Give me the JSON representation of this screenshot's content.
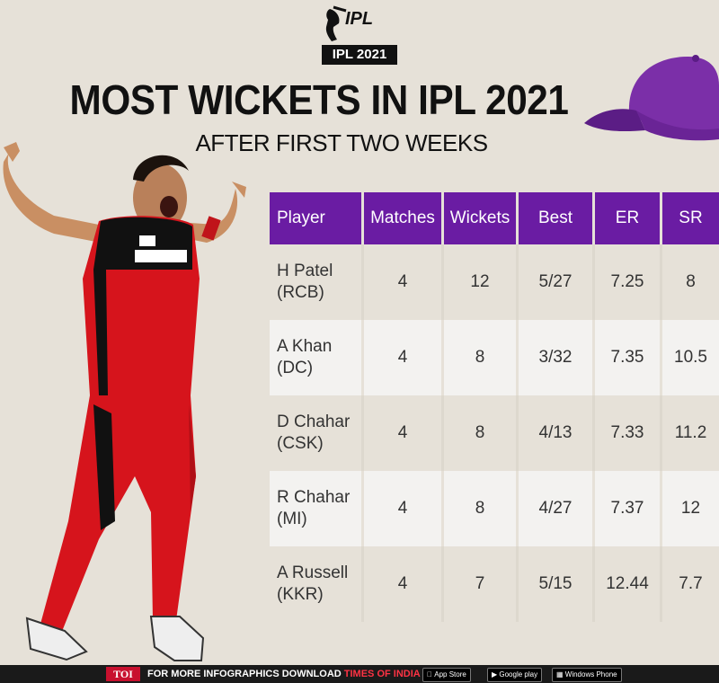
{
  "header": {
    "logo_text": "IPL",
    "badge": "IPL 2021",
    "title": "MOST WICKETS IN IPL 2021",
    "subtitle": "AFTER FIRST TWO WEEKS"
  },
  "colors": {
    "accent": "#6a1ca3",
    "background": "#e6e1d8",
    "cap": "#7b2fa8"
  },
  "chart_data": {
    "type": "table",
    "columns": [
      "Player",
      "Matches",
      "Wickets",
      "Best",
      "ER",
      "SR"
    ],
    "rows": [
      {
        "player": "H Patel",
        "team": "(RCB)",
        "matches": "4",
        "wickets": "12",
        "best": "5/27",
        "er": "7.25",
        "sr": "8"
      },
      {
        "player": "A Khan",
        "team": "(DC)",
        "matches": "4",
        "wickets": "8",
        "best": "3/32",
        "er": "7.35",
        "sr": "10.5"
      },
      {
        "player": "D Chahar",
        "team": "(CSK)",
        "matches": "4",
        "wickets": "8",
        "best": "4/13",
        "er": "7.33",
        "sr": "11.2"
      },
      {
        "player": "R Chahar",
        "team": "(MI)",
        "matches": "4",
        "wickets": "8",
        "best": "4/27",
        "er": "7.37",
        "sr": "12"
      },
      {
        "player": "A Russell",
        "team": "(KKR)",
        "matches": "4",
        "wickets": "7",
        "best": "5/15",
        "er": "12.44",
        "sr": "7.7"
      }
    ]
  },
  "footer": {
    "toi": "TOI",
    "text": "FOR MORE  INFOGRAPHICS DOWNLOAD",
    "app": "TIMES OF INDIA APP",
    "app_store": "App Store",
    "google_play": "Google play",
    "windows_phone": "Windows Phone"
  }
}
